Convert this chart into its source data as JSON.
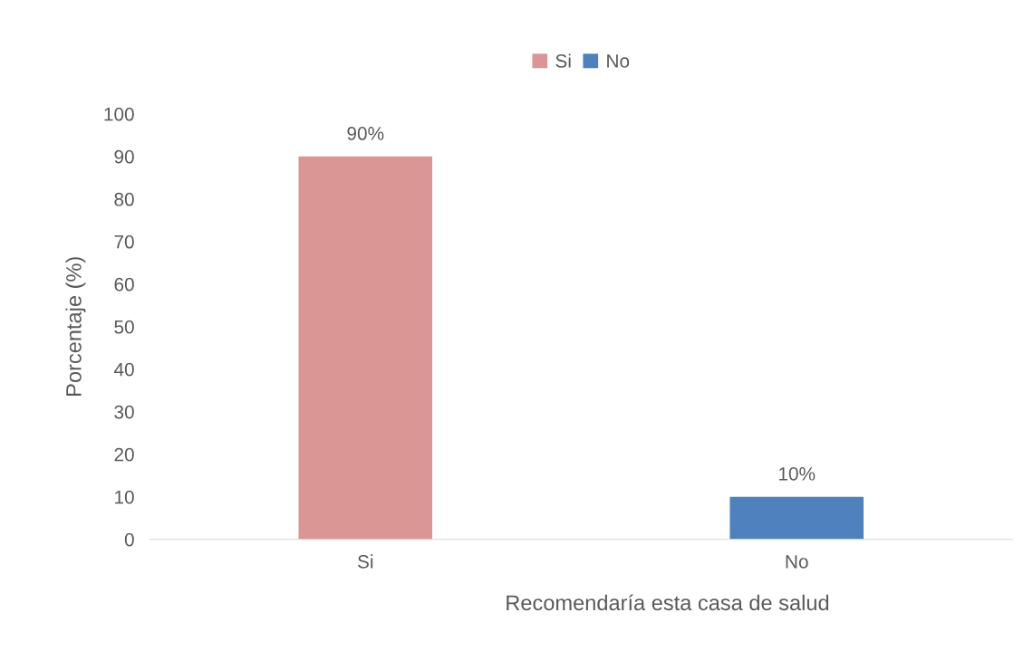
{
  "chart_data": {
    "type": "bar",
    "xlabel": "Recomendaría esta casa de salud",
    "ylabel": "Porcentaje (%)",
    "categories": [
      "Si",
      "No"
    ],
    "series": [
      {
        "name": "Si",
        "color": "#d99694",
        "values": [
          90,
          null
        ],
        "value_labels": [
          "90%",
          null
        ]
      },
      {
        "name": "No",
        "color": "#4f81bd",
        "values": [
          null,
          10
        ],
        "value_labels": [
          null,
          "10%"
        ]
      }
    ],
    "ylim": [
      0,
      100
    ],
    "yticks": [
      0,
      10,
      20,
      30,
      40,
      50,
      60,
      70,
      80,
      90,
      100
    ],
    "grid": false,
    "legend": "top"
  }
}
